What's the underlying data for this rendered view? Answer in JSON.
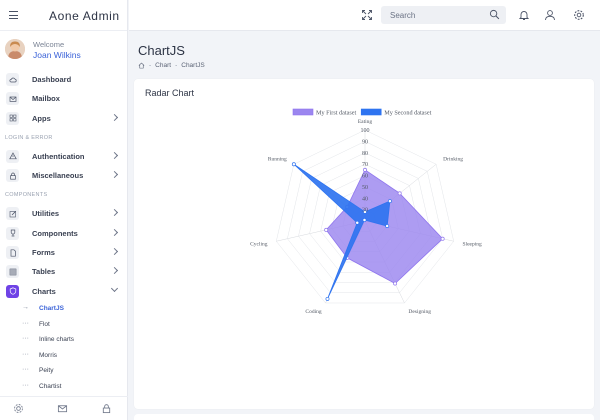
{
  "brand": {
    "name": "Aone  Admin"
  },
  "user": {
    "welcome": "Welcome",
    "name": "Joan Wilkins"
  },
  "nav": {
    "top": [
      {
        "key": "dashboard",
        "label": "Dashboard",
        "icon": "cloud-icon",
        "chevron": false
      },
      {
        "key": "mailbox",
        "label": "Mailbox",
        "icon": "mail-icon",
        "chevron": false
      },
      {
        "key": "apps",
        "label": "Apps",
        "icon": "grid-icon",
        "chevron": true
      }
    ],
    "section_login": "LOGIN & ERROR",
    "login": [
      {
        "key": "authentication",
        "label": "Authentication",
        "icon": "warning-icon",
        "chevron": true
      },
      {
        "key": "miscellaneous",
        "label": "Miscellaneous",
        "icon": "lock-icon",
        "chevron": true
      }
    ],
    "section_components": "COMPONENTS",
    "components": [
      {
        "key": "utilities",
        "label": "Utilities",
        "icon": "edit-icon",
        "chevron": true
      },
      {
        "key": "components",
        "label": "Components",
        "icon": "trophy-icon",
        "chevron": true
      },
      {
        "key": "forms",
        "label": "Forms",
        "icon": "file-icon",
        "chevron": true
      },
      {
        "key": "tables",
        "label": "Tables",
        "icon": "table-icon",
        "chevron": true
      },
      {
        "key": "charts",
        "label": "Charts",
        "icon": "shield-icon",
        "chevron": true
      }
    ],
    "charts_sub": [
      {
        "key": "chartjs",
        "label": "ChartJS",
        "active": true
      },
      {
        "key": "flot",
        "label": "Flot"
      },
      {
        "key": "inline-charts",
        "label": "Inline charts"
      },
      {
        "key": "morris",
        "label": "Morris"
      },
      {
        "key": "peity",
        "label": "Peity"
      },
      {
        "key": "chartist",
        "label": "Chartist"
      }
    ]
  },
  "header": {
    "search_placeholder": "Search"
  },
  "page": {
    "title": "ChartJS",
    "breadcrumb": {
      "chart": "Chart",
      "current": "ChartJS",
      "separator": "-"
    },
    "card_title": "Radar Chart"
  },
  "colors": {
    "accent": "#6f43e6",
    "link": "#3b63d8",
    "series1_fill": "#9b86ef",
    "series1_stroke": "#8f75ee",
    "series2_fill": "#2f74f0"
  },
  "chart_data": {
    "type": "radar",
    "labels": [
      "Eating",
      "Drinking",
      "Sleeping",
      "Designing",
      "Coding",
      "Cycling",
      "Running"
    ],
    "ticks": [
      30,
      40,
      50,
      60,
      70,
      80,
      90,
      100
    ],
    "rlim": [
      20,
      100
    ],
    "legend_position": "top",
    "series": [
      {
        "name": "My First dataset",
        "values": [
          65,
          59,
          90,
          81,
          56,
          55,
          40
        ]
      },
      {
        "name": "My Second dataset",
        "values": [
          28,
          48,
          40,
          19,
          96,
          27,
          100
        ]
      }
    ]
  }
}
